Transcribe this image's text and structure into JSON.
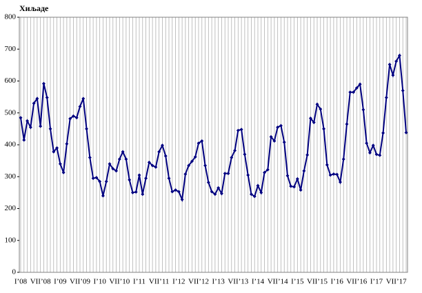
{
  "chart_data": {
    "type": "line",
    "title": "Хиљаде",
    "categories": [
      "I’08",
      null,
      null,
      null,
      null,
      null,
      "VII’08",
      null,
      null,
      null,
      null,
      null,
      "I’09",
      null,
      null,
      null,
      null,
      null,
      "VII’09",
      null,
      null,
      null,
      null,
      null,
      "I’10",
      null,
      null,
      null,
      null,
      null,
      "VII’10",
      null,
      null,
      null,
      null,
      null,
      "I’11",
      null,
      null,
      null,
      null,
      null,
      "VII’11",
      null,
      null,
      null,
      null,
      null,
      "I’12",
      null,
      null,
      null,
      null,
      null,
      "VII’12",
      null,
      null,
      null,
      null,
      null,
      "I’13",
      null,
      null,
      null,
      null,
      null,
      "VII’13",
      null,
      null,
      null,
      null,
      null,
      "I’14",
      null,
      null,
      null,
      null,
      null,
      "VII’14",
      null,
      null,
      null,
      null,
      null,
      "I’15",
      null,
      null,
      null,
      null,
      null,
      "VII’15",
      null,
      null,
      null,
      null,
      null,
      "I’16",
      null,
      null,
      null,
      null,
      null,
      "VII’16",
      null,
      null,
      null,
      null,
      null,
      "I’17",
      null,
      null,
      null,
      null,
      null,
      "VII’17",
      null,
      null,
      null
    ],
    "values": [
      485,
      415,
      475,
      455,
      530,
      545,
      458,
      592,
      548,
      450,
      378,
      390,
      340,
      313,
      403,
      482,
      490,
      485,
      520,
      545,
      450,
      360,
      295,
      297,
      285,
      240,
      285,
      340,
      325,
      318,
      355,
      378,
      355,
      290,
      250,
      252,
      305,
      245,
      295,
      345,
      335,
      330,
      378,
      398,
      365,
      295,
      253,
      258,
      253,
      228,
      308,
      335,
      348,
      362,
      405,
      412,
      335,
      282,
      253,
      245,
      265,
      247,
      310,
      310,
      360,
      382,
      445,
      448,
      370,
      305,
      245,
      238,
      272,
      250,
      313,
      322,
      425,
      412,
      455,
      460,
      408,
      303,
      270,
      268,
      293,
      258,
      318,
      368,
      483,
      470,
      527,
      512,
      450,
      337,
      305,
      308,
      307,
      283,
      355,
      465,
      565,
      565,
      578,
      590,
      510,
      405,
      375,
      398,
      370,
      367,
      437,
      548,
      652,
      618,
      662,
      680,
      570,
      438
    ],
    "color": "#000080",
    "ylim": [
      0,
      800
    ],
    "yticks": [
      0,
      100,
      200,
      300,
      400,
      500,
      600,
      700,
      800
    ],
    "grid": true
  }
}
